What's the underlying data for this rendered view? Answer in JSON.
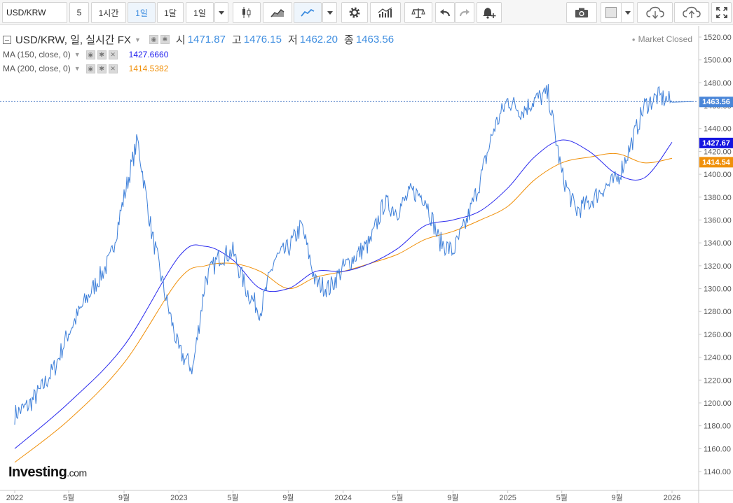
{
  "toolbar": {
    "symbol": "USD/KRW",
    "intervals": [
      "5",
      "1시간",
      "1일",
      "1달",
      "1일"
    ],
    "active_interval_index": 2,
    "icons": [
      "dropdown-caret-icon",
      "candlestick-icon",
      "area-chart-icon",
      "line-chart-icon",
      "dropdown-caret-icon",
      "gear-icon",
      "indicators-icon",
      "scale-icon",
      "undo-icon",
      "redo-icon",
      "alert-bell-icon",
      "camera-icon",
      "color-box-icon",
      "dropdown-caret-icon",
      "cloud-download-icon",
      "cloud-upload-icon",
      "fullscreen-icon"
    ]
  },
  "legend": {
    "title": "USD/KRW, 일, 실시간 FX",
    "open_label": "시",
    "open": "1471.87",
    "high_label": "고",
    "high": "1476.15",
    "low_label": "저",
    "low": "1462.20",
    "close_label": "종",
    "close": "1463.56",
    "ma1_label": "MA (150, close, 0)",
    "ma1_value": "1427.6660",
    "ma2_label": "MA (200, close, 0)",
    "ma2_value": "1414.5382"
  },
  "status": "Market Closed",
  "brand": {
    "name": "Investing",
    "domain": ".com"
  },
  "colors": {
    "price": "#3d7fd9",
    "ma150": "#2a2aee",
    "ma200": "#f0900a",
    "last_price_bg": "#4a86d8"
  },
  "chart_data": {
    "type": "line",
    "x_tick_labels": [
      "2022",
      "5월",
      "9월",
      "2023",
      "5월",
      "9월",
      "2024",
      "5월",
      "9월",
      "2025",
      "5월",
      "9월",
      "2026"
    ],
    "y_tick_labels": [
      "1140.00",
      "1160.00",
      "1180.00",
      "1200.00",
      "1220.00",
      "1240.00",
      "1260.00",
      "1280.00",
      "1300.00",
      "1320.00",
      "1340.00",
      "1360.00",
      "1380.00",
      "1400.00",
      "1420.00",
      "1440.00",
      "1460.00",
      "1480.00",
      "1500.00",
      "1520.00"
    ],
    "ylim": [
      1128,
      1533
    ],
    "price_labels": {
      "last": "1463.56",
      "ma150": "1427.67",
      "ma200": "1414.54"
    },
    "series": [
      {
        "name": "USD/KRW",
        "x": [
          "2022-01",
          "2022-02",
          "2022-03",
          "2022-04",
          "2022-05",
          "2022-06",
          "2022-07",
          "2022-08",
          "2022-09",
          "2022-10",
          "2022-11",
          "2022-12",
          "2023-01",
          "2023-02",
          "2023-03",
          "2023-04",
          "2023-05",
          "2023-06",
          "2023-07",
          "2023-08",
          "2023-09",
          "2023-10",
          "2023-11",
          "2023-12",
          "2024-01",
          "2024-02",
          "2024-03",
          "2024-04",
          "2024-05",
          "2024-06",
          "2024-07",
          "2024-08",
          "2024-09",
          "2024-10",
          "2024-11",
          "2024-12",
          "2025-01",
          "2025-02",
          "2025-03",
          "2025-04",
          "2025-05",
          "2025-06",
          "2025-07",
          "2025-08",
          "2025-09",
          "2025-10",
          "2025-11",
          "2025-12",
          "2026-01"
        ],
        "values": [
          1190,
          1198,
          1212,
          1232,
          1262,
          1285,
          1305,
          1325,
          1380,
          1430,
          1350,
          1295,
          1245,
          1230,
          1308,
          1328,
          1332,
          1298,
          1280,
          1325,
          1335,
          1355,
          1305,
          1300,
          1318,
          1330,
          1340,
          1375,
          1368,
          1385,
          1380,
          1342,
          1332,
          1358,
          1395,
          1440,
          1465,
          1455,
          1465,
          1470,
          1400,
          1368,
          1375,
          1388,
          1395,
          1425,
          1460,
          1468,
          1463
        ]
      },
      {
        "name": "MA (150, close, 0)",
        "x": [
          "2022-01",
          "2022-05",
          "2022-09",
          "2023-01",
          "2023-03",
          "2023-05",
          "2023-07",
          "2023-09",
          "2023-11",
          "2024-01",
          "2024-03",
          "2024-05",
          "2024-07",
          "2024-09",
          "2024-11",
          "2025-01",
          "2025-03",
          "2025-05",
          "2025-07",
          "2025-09",
          "2025-11",
          "2026-01"
        ],
        "values": [
          1160,
          1200,
          1250,
          1328,
          1337,
          1325,
          1300,
          1300,
          1315,
          1315,
          1322,
          1335,
          1355,
          1360,
          1368,
          1388,
          1415,
          1430,
          1420,
          1400,
          1397,
          1428
        ]
      },
      {
        "name": "MA (200, close, 0)",
        "x": [
          "2022-01",
          "2022-05",
          "2022-09",
          "2023-01",
          "2023-03",
          "2023-05",
          "2023-07",
          "2023-09",
          "2023-11",
          "2024-01",
          "2024-03",
          "2024-05",
          "2024-07",
          "2024-09",
          "2024-11",
          "2025-01",
          "2025-03",
          "2025-05",
          "2025-07",
          "2025-09",
          "2025-11",
          "2026-01"
        ],
        "values": [
          1148,
          1185,
          1235,
          1308,
          1320,
          1322,
          1315,
          1300,
          1310,
          1315,
          1322,
          1330,
          1343,
          1350,
          1360,
          1372,
          1395,
          1410,
          1415,
          1418,
          1410,
          1414
        ]
      }
    ],
    "last_price_line": 1463.56,
    "grid": false,
    "legend_position": "top-left"
  }
}
